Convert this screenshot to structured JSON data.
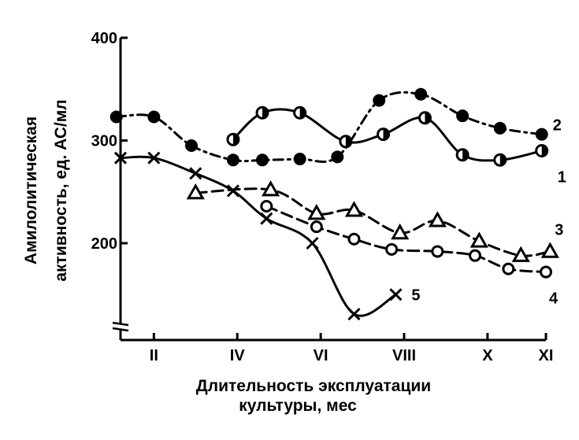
{
  "chart_data": {
    "type": "line",
    "xlabel": [
      "Длительность эксплуатации",
      "культуры, мес"
    ],
    "ylabel": [
      "Амилолитическая",
      "активность, ед. АС/мл"
    ],
    "xlim": [
      1.2,
      11.4
    ],
    "ylim": [
      110,
      400
    ],
    "x_ticks": [
      {
        "value": 2,
        "label": "II"
      },
      {
        "value": 4,
        "label": "IV"
      },
      {
        "value": 6,
        "label": "VI"
      },
      {
        "value": 8,
        "label": "VIII"
      },
      {
        "value": 10,
        "label": "X"
      },
      {
        "value": 11.4,
        "label": "XI"
      }
    ],
    "y_ticks": [
      {
        "value": 200,
        "label": "200"
      },
      {
        "value": 300,
        "label": "300"
      },
      {
        "value": 400,
        "label": "400"
      }
    ],
    "axis_break": true,
    "grid": false,
    "series": [
      {
        "label": "1",
        "marker": "half-circle",
        "line": "solid",
        "x": [
          3.9,
          4.6,
          5.5,
          6.6,
          7.5,
          8.5,
          9.4,
          10.3,
          11.3
        ],
        "y": [
          301,
          327,
          327,
          299,
          306,
          322,
          286,
          281,
          290
        ]
      },
      {
        "label": "2",
        "marker": "filled-circle",
        "line": "dashdot",
        "x": [
          1.1,
          2.0,
          2.9,
          3.9,
          4.6,
          5.5,
          6.4,
          7.4,
          8.4,
          9.4,
          10.3,
          11.3
        ],
        "y": [
          323,
          323,
          295,
          281,
          281,
          282,
          284,
          339,
          345,
          324,
          312,
          306
        ]
      },
      {
        "label": "3",
        "marker": "triangle",
        "line": "dashed",
        "x": [
          3.0,
          4.8,
          5.9,
          6.8,
          7.9,
          8.8,
          9.8,
          10.8,
          11.5
        ],
        "y": [
          249,
          252,
          229,
          232,
          210,
          222,
          202,
          188,
          192
        ]
      },
      {
        "label": "4",
        "marker": "open-circle",
        "line": "dashed",
        "x": [
          4.7,
          5.9,
          6.8,
          7.7,
          8.8,
          9.7,
          10.5,
          11.4
        ],
        "y": [
          236,
          216,
          204,
          194,
          192,
          188,
          175,
          172
        ]
      },
      {
        "label": "5",
        "marker": "x",
        "line": "solid",
        "x": [
          1.2,
          2.0,
          3.0,
          3.9,
          4.7,
          5.8,
          6.8,
          7.8
        ],
        "y": [
          283,
          283,
          268,
          251,
          224,
          200,
          131,
          150
        ]
      }
    ]
  }
}
